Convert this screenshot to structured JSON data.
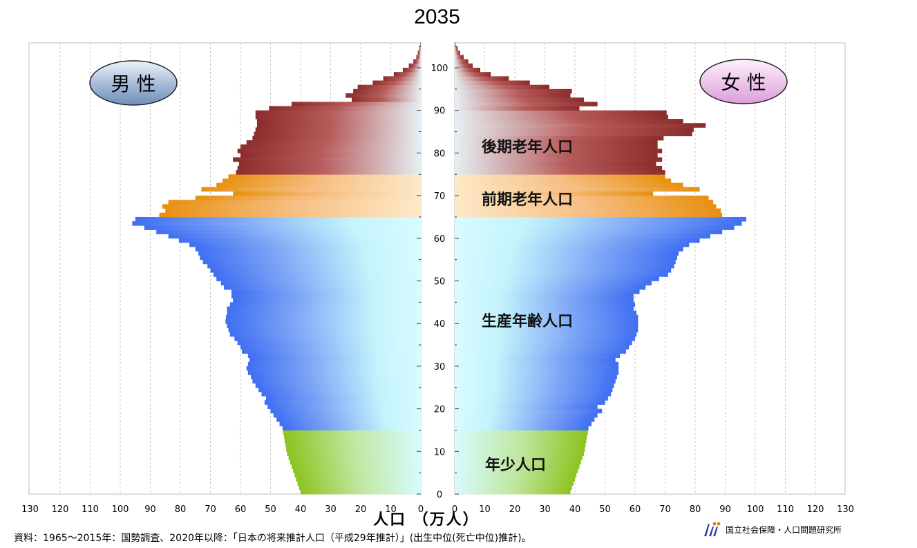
{
  "title": "2035",
  "male_label": "男 性",
  "female_label": "女 性",
  "colors": {
    "late_elderly": "#8b2d2d",
    "early_elderly": "#e8900f",
    "working": "#3f6ef2",
    "youth": "#8cc31e",
    "center": "#d8fbff",
    "male_badge": "#6f8fb8",
    "female_badge": "#d9a0d8"
  },
  "chart_data": {
    "type": "bar",
    "orientation": "horizontal-pyramid",
    "age_ticks": [
      0,
      10,
      20,
      30,
      40,
      50,
      60,
      70,
      80,
      90,
      100
    ],
    "x_ticks": [
      130,
      120,
      110,
      100,
      90,
      80,
      70,
      60,
      50,
      40,
      30,
      20,
      10,
      0
    ],
    "x_ticks_right": [
      0,
      10,
      20,
      30,
      40,
      50,
      60,
      70,
      80,
      90,
      100,
      110,
      120,
      130
    ],
    "xlabel": "人口 （万人）",
    "xlim": [
      0,
      130
    ],
    "ylim": [
      0,
      105
    ],
    "grid": true,
    "groups": [
      {
        "label": "後期老年人口",
        "from": 75,
        "to": 105
      },
      {
        "label": "前期老年人口",
        "from": 65,
        "to": 74
      },
      {
        "label": "生産年齢人口",
        "from": 15,
        "to": 64
      },
      {
        "label": "年少人口",
        "from": 0,
        "to": 14
      }
    ],
    "series": [
      {
        "name": "男 性",
        "values": [
          40.0,
          40.5,
          41.0,
          41.5,
          42.0,
          42.5,
          43.0,
          43.5,
          44.0,
          44.5,
          44.8,
          45.0,
          45.3,
          45.5,
          45.8,
          46.0,
          47.0,
          48.0,
          49.0,
          50.0,
          51.0,
          52.0,
          51.5,
          53.0,
          54.0,
          55.0,
          56.0,
          56.5,
          57.5,
          58.0,
          57.5,
          57.0,
          57.5,
          59.5,
          60.0,
          61.0,
          62.0,
          63.5,
          64.0,
          64.5,
          65.0,
          64.8,
          64.5,
          64.5,
          63.5,
          62.5,
          63.0,
          63.0,
          65.5,
          66.5,
          68.0,
          69.0,
          70.0,
          71.0,
          72.5,
          73.5,
          74.0,
          75.0,
          77.0,
          80.5,
          84.0,
          88.0,
          92.0,
          96.0,
          95.0,
          87.0,
          85.0,
          86.0,
          84.0,
          75.0,
          62.5,
          73.0,
          68.0,
          66.0,
          64.0,
          61.5,
          61.0,
          60.5,
          62.5,
          60.0,
          61.0,
          60.0,
          58.0,
          56.0,
          55.5,
          55.0,
          54.5,
          54.5,
          55.0,
          55.0,
          50.5,
          43.0,
          23.0,
          25.0,
          22.5,
          21.0,
          16.0,
          12.5,
          9.0,
          6.0,
          4.0,
          2.5,
          1.5,
          1.0,
          0.5,
          0.2
        ]
      },
      {
        "name": "女 性",
        "values": [
          38.5,
          39.0,
          39.5,
          40.0,
          40.5,
          41.0,
          41.5,
          42.0,
          42.5,
          43.0,
          43.3,
          43.5,
          43.8,
          44.0,
          44.3,
          44.5,
          45.5,
          46.5,
          47.5,
          49.0,
          47.5,
          50.0,
          51.0,
          52.0,
          52.5,
          53.0,
          53.5,
          54.0,
          54.5,
          54.5,
          54.5,
          53.5,
          55.0,
          57.0,
          58.0,
          59.0,
          60.0,
          60.5,
          61.0,
          61.0,
          61.0,
          61.0,
          60.5,
          59.5,
          60.0,
          59.5,
          59.5,
          61.5,
          63.5,
          65.5,
          68.0,
          71.0,
          72.0,
          73.0,
          73.5,
          74.0,
          74.5,
          76.0,
          78.0,
          81.5,
          85.0,
          89.0,
          93.0,
          95.5,
          97.0,
          89.0,
          88.5,
          87.0,
          86.0,
          84.5,
          66.0,
          81.5,
          76.0,
          72.0,
          70.0,
          70.0,
          69.0,
          67.0,
          69.0,
          67.5,
          69.0,
          67.5,
          67.5,
          69.5,
          79.0,
          79.5,
          83.5,
          76.0,
          71.0,
          70.5,
          41.5,
          47.5,
          43.0,
          38.5,
          39.0,
          31.5,
          25.0,
          18.0,
          12.0,
          8.5,
          6.0,
          4.5,
          3.0,
          1.8,
          1.0,
          0.3
        ]
      }
    ]
  },
  "footnote": "資料：1965～2015年：国勢調査、2020年以降：「日本の将来推計人口（平成29年推計）」(出生中位(死亡中位)推計)。",
  "org_name": "国立社会保障・人口問題研究所"
}
